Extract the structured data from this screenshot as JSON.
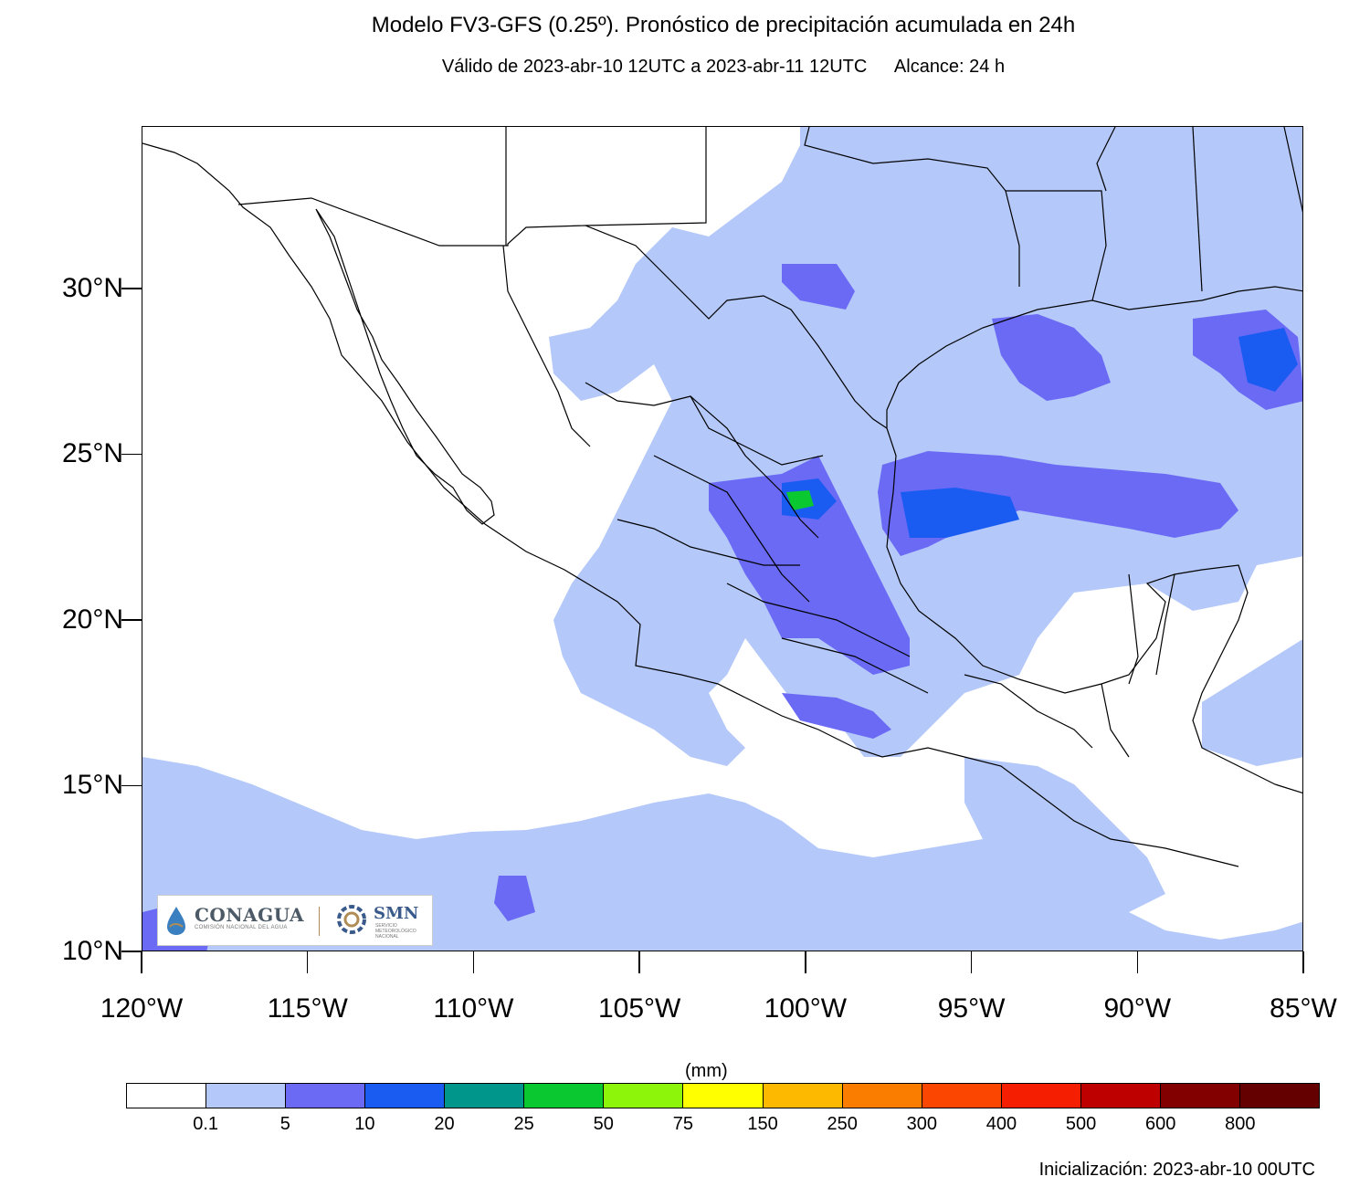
{
  "title": "Modelo FV3-GFS (0.25º). Pronóstico de precipitación acumulada en 24h",
  "subtitle": {
    "valid": "Válido de 2023-abr-10 12UTC a 2023-abr-11 12UTC",
    "range": "Alcance: 24 h"
  },
  "map": {
    "lon_range": [
      -120,
      -85
    ],
    "lat_range": [
      10,
      34.9
    ],
    "lat_labels": [
      {
        "lat": 30,
        "label": "30°N"
      },
      {
        "lat": 25,
        "label": "25°N"
      },
      {
        "lat": 20,
        "label": "20°N"
      },
      {
        "lat": 15,
        "label": "15°N"
      },
      {
        "lat": 10,
        "label": "10°N"
      }
    ],
    "lon_labels": [
      {
        "lon": -120,
        "label": "120°W"
      },
      {
        "lon": -115,
        "label": "115°W"
      },
      {
        "lon": -110,
        "label": "110°W"
      },
      {
        "lon": -105,
        "label": "105°W"
      },
      {
        "lon": -100,
        "label": "100°W"
      },
      {
        "lon": -95,
        "label": "95°W"
      },
      {
        "lon": -90,
        "label": "90°W"
      },
      {
        "lon": -85,
        "label": "85°W"
      }
    ],
    "base_color": "#ffffff",
    "precip_colors": {
      "light": "#b4c8fa",
      "moderate": "#6a6af5",
      "heavy": "#1a5cf2",
      "very_heavy": "#0ac830"
    }
  },
  "colorbar": {
    "unit": "(mm)",
    "colors": [
      "#ffffff",
      "#b4c8fa",
      "#6a6af5",
      "#1a5cf2",
      "#00968c",
      "#0ac830",
      "#8cf50a",
      "#ffff00",
      "#fcb900",
      "#fa7d00",
      "#fa4600",
      "#f51e00",
      "#be0000",
      "#820000",
      "#640000"
    ],
    "labels": [
      "0.1",
      "5",
      "10",
      "20",
      "25",
      "50",
      "75",
      "150",
      "250",
      "300",
      "400",
      "500",
      "600",
      "800"
    ]
  },
  "logos": {
    "conagua": "CONAGUA",
    "conagua_sub": "COMISIÓN NACIONAL DEL AGUA",
    "smn": "SMN",
    "smn_sub": "SERVICIO METEOROLÓGICO NACIONAL"
  },
  "init": "Inicialización: 2023-abr-10 00UTC"
}
